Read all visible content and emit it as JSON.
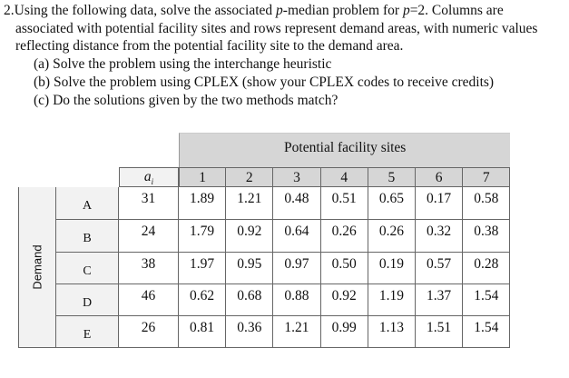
{
  "question": {
    "line1": {
      "a": "2.Using the following data, solve the associated ",
      "p1": "p",
      "b": "-median problem for ",
      "p2": "p",
      "c": "=2.  Columns are"
    },
    "line2": "associated with potential facility sites and rows represent demand areas, with numeric values",
    "line3": "reflecting distance from the potential facility site to the demand area.",
    "items": [
      "(a) Solve the problem using the interchange heuristic",
      "(b) Solve the problem using CPLEX (show your CPLEX codes to receive credits)",
      "(c) Do the solutions given by the two methods match?"
    ]
  },
  "table": {
    "group_header": "Potential facility sites",
    "row_group_label": "Demand",
    "weight_header": "a_i",
    "weight_header_base": "a",
    "weight_header_sub": "i",
    "columns": [
      "1",
      "2",
      "3",
      "4",
      "5",
      "6",
      "7"
    ],
    "rows": [
      {
        "label": "A",
        "a": "31",
        "values": [
          "1.89",
          "1.21",
          "0.48",
          "0.51",
          "0.65",
          "0.17",
          "0.58"
        ]
      },
      {
        "label": "B",
        "a": "24",
        "values": [
          "1.79",
          "0.92",
          "0.64",
          "0.26",
          "0.26",
          "0.32",
          "0.38"
        ]
      },
      {
        "label": "C",
        "a": "38",
        "values": [
          "1.97",
          "0.95",
          "0.97",
          "0.50",
          "0.19",
          "0.57",
          "0.28"
        ]
      },
      {
        "label": "D",
        "a": "46",
        "values": [
          "0.62",
          "0.68",
          "0.88",
          "0.92",
          "1.19",
          "1.37",
          "1.54"
        ]
      },
      {
        "label": "E",
        "a": "26",
        "values": [
          "0.81",
          "0.36",
          "1.21",
          "0.99",
          "1.13",
          "1.51",
          "1.54"
        ]
      }
    ]
  }
}
